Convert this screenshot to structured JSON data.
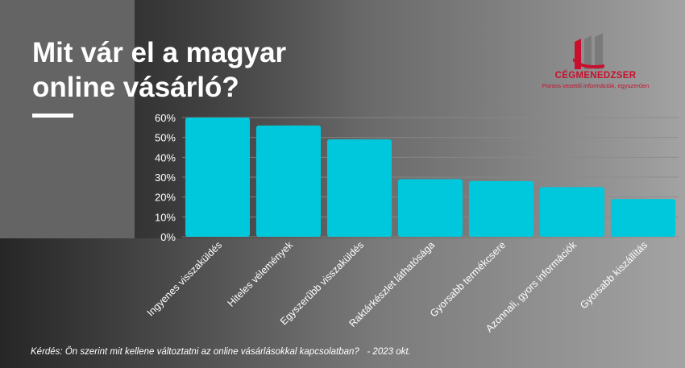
{
  "title_lines": [
    "Mit vár el a magyar",
    "online vásárló?"
  ],
  "logo": {
    "name": "CÉGMENEDZSER",
    "tagline": "Pontos vezetői információk, egyszerűen"
  },
  "footnote": "Kérdés: Ön szerint mit kellene változtatni az online vásárlásokkal kapcsolatban?   - 2023 okt.",
  "colors": {
    "bar": "#00c8dc",
    "grid": "#8a8a8a",
    "text": "#ffffff",
    "logo_red": "#c8102e",
    "logo_gray": "#7a7a7a"
  },
  "chart_data": {
    "type": "bar",
    "categories": [
      "Ingyenes visszaküldés",
      "Hiteles vélemények",
      "Egyszerűbb visszaküldés",
      "Raktárkészlet láthatósága",
      "Gyorsabb termékcsere",
      "Azonnali, gyors információk",
      "Gyorsabb kiszállítás"
    ],
    "values": [
      60,
      56,
      49,
      29,
      28,
      25,
      19
    ],
    "value_unit": "%",
    "yticks": [
      0,
      10,
      20,
      30,
      40,
      50,
      60
    ],
    "ylim": [
      0,
      60
    ],
    "grid": true,
    "title": "",
    "xlabel": "",
    "ylabel": ""
  }
}
